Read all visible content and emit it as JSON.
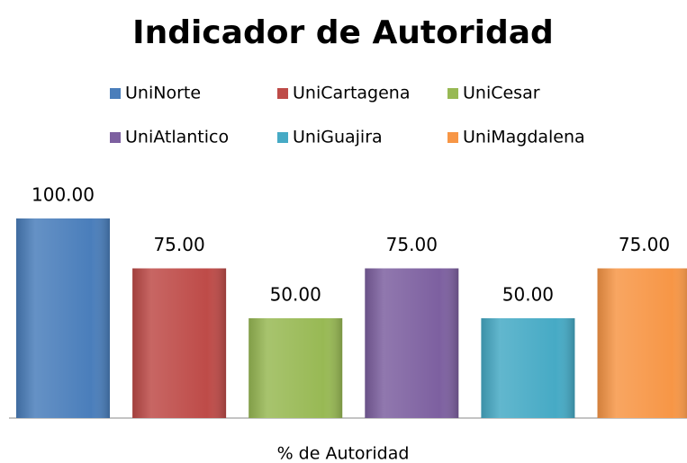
{
  "chart_data": {
    "type": "bar",
    "title": "Indicador de Autoridad",
    "categories": [
      "% de Autoridad"
    ],
    "series": [
      {
        "name": "UniNorte",
        "color": "#4a7ebb",
        "values": [
          100
        ],
        "value_labels": [
          "100.00"
        ]
      },
      {
        "name": "UniCartagena",
        "color": "#be4b48",
        "values": [
          75
        ],
        "value_labels": [
          "75.00"
        ]
      },
      {
        "name": "UniCesar",
        "color": "#98b954",
        "values": [
          50
        ],
        "value_labels": [
          "50.00"
        ]
      },
      {
        "name": "UniAtlantico",
        "color": "#7d60a0",
        "values": [
          75
        ],
        "value_labels": [
          "75.00"
        ]
      },
      {
        "name": "UniGuajira",
        "color": "#46aac5",
        "values": [
          50
        ],
        "value_labels": [
          "50.00"
        ]
      },
      {
        "name": "UniMagdalena",
        "color": "#f79646",
        "values": [
          75
        ],
        "value_labels": [
          "75.00"
        ]
      }
    ],
    "legend": "top"
  }
}
